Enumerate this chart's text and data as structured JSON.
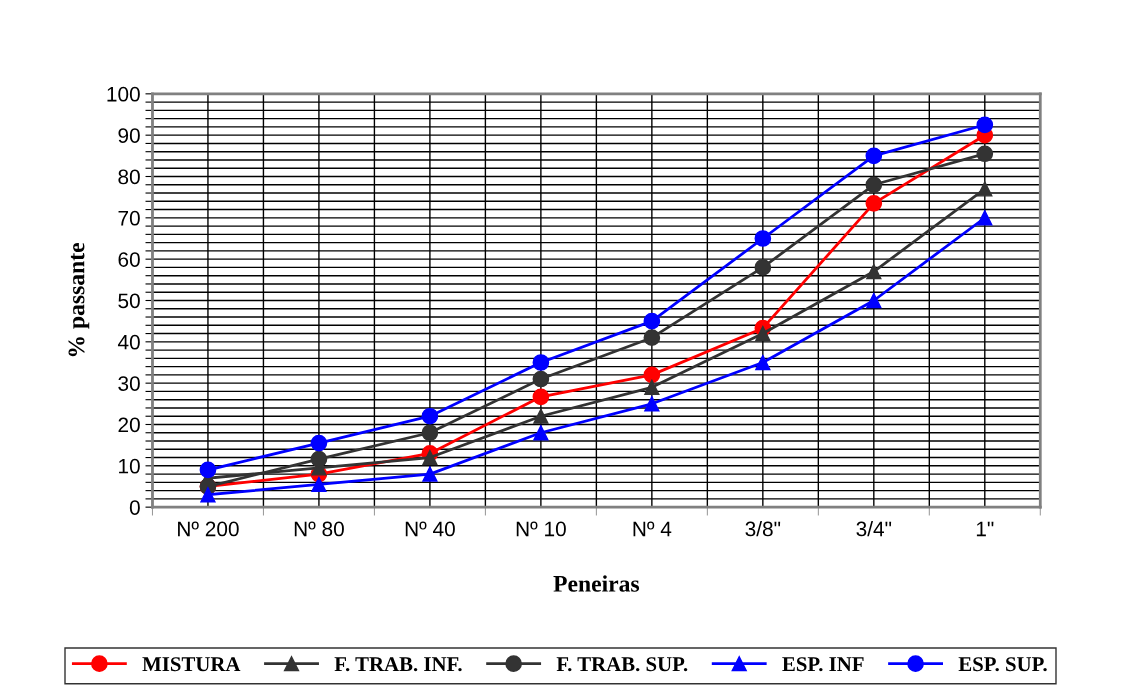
{
  "chart_data": {
    "type": "line",
    "xlabel": "Peneiras",
    "ylabel": "% passante",
    "categories": [
      "Nº 200",
      "Nº 80",
      "Nº 40",
      "Nº 10",
      "Nº 4",
      "3/8\"",
      "3/4\"",
      "1\""
    ],
    "series": [
      {
        "name": "MISTURA",
        "color": "#ff0000",
        "marker": "circle",
        "values": [
          5,
          8,
          13,
          26.7,
          32,
          43.3,
          73.5,
          90
        ]
      },
      {
        "name": "F. TRAB. INF.",
        "color": "#333333",
        "marker": "triangle",
        "values": [
          7,
          9.5,
          12,
          22,
          29,
          42,
          57,
          77
        ]
      },
      {
        "name": "F. TRAB. SUP.",
        "color": "#333333",
        "marker": "circle",
        "values": [
          5,
          11.6,
          18,
          31,
          41,
          58,
          78,
          85.5
        ]
      },
      {
        "name": "ESP. INF",
        "color": "#0000ff",
        "marker": "triangle",
        "values": [
          3,
          5.5,
          8,
          18,
          25,
          35,
          50,
          70
        ]
      },
      {
        "name": "ESP. SUP.",
        "color": "#0000ff",
        "marker": "circle",
        "values": [
          9,
          15.5,
          22,
          35,
          45,
          65,
          85,
          92.5
        ]
      }
    ],
    "ylim": [
      0,
      100
    ],
    "yticks": [
      0,
      {
        "value": 2,
        "label": null
      },
      {
        "value": 4,
        "label": null
      },
      {
        "value": 6,
        "label": null
      },
      {
        "value": 8,
        "label": null
      },
      10,
      {
        "value": 12,
        "label": null
      },
      {
        "value": 14,
        "label": null
      },
      {
        "value": 16,
        "label": null
      },
      {
        "value": 18,
        "label": null
      },
      20,
      {
        "value": 22,
        "label": null
      },
      {
        "value": 24,
        "label": null
      },
      {
        "value": 26,
        "label": null
      },
      {
        "value": 28,
        "label": null
      },
      30,
      {
        "value": 32,
        "label": null
      },
      {
        "value": 34,
        "label": null
      },
      {
        "value": 36,
        "label": null
      },
      {
        "value": 38,
        "label": null
      },
      40,
      {
        "value": 42,
        "label": null
      },
      {
        "value": 44,
        "label": null
      },
      {
        "value": 46,
        "label": null
      },
      {
        "value": 48,
        "label": null
      },
      50,
      {
        "value": 52,
        "label": null
      },
      {
        "value": 54,
        "label": null
      },
      {
        "value": 56,
        "label": null
      },
      {
        "value": 58,
        "label": null
      },
      60,
      {
        "value": 62,
        "label": null
      },
      {
        "value": 64,
        "label": null
      },
      {
        "value": 66,
        "label": null
      },
      {
        "value": 68,
        "label": null
      },
      70,
      {
        "value": 72,
        "label": null
      },
      {
        "value": 74,
        "label": null
      },
      {
        "value": 76,
        "label": null
      },
      {
        "value": 78,
        "label": null
      },
      80,
      {
        "value": 82,
        "label": null
      },
      {
        "value": 84,
        "label": null
      },
      {
        "value": 86,
        "label": null
      },
      {
        "value": 88,
        "label": null
      },
      90,
      {
        "value": 92,
        "label": null
      },
      {
        "value": 94,
        "label": null
      },
      {
        "value": 96,
        "label": null
      },
      {
        "value": 98,
        "label": null
      },
      100
    ],
    "grid": true,
    "legend": "bottom",
    "line_style": "solid"
  }
}
